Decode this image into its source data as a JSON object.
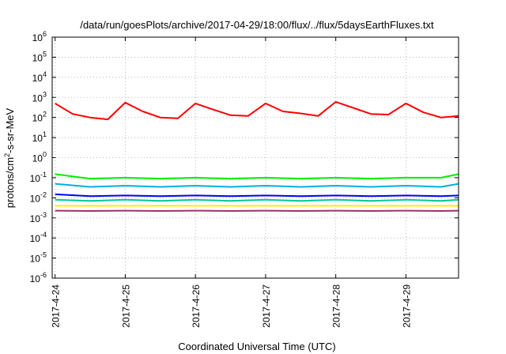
{
  "chart_data": {
    "type": "line",
    "title": "/data/run/goesPlots/archive/2017-04-29/18:00/flux/../flux/5daysEarthFluxes.txt",
    "xlabel": "Coordinated Universal Time (UTC)",
    "ylabel": {
      "pre": "protons/cm",
      "sup": "2",
      "post": "-s-sr-MeV"
    },
    "yscale": "log",
    "ylim": [
      1e-06,
      1000000.0
    ],
    "y_ticks": [
      {
        "base": "10",
        "exp": "-6",
        "value": 1e-06
      },
      {
        "base": "10",
        "exp": "-5",
        "value": 1e-05
      },
      {
        "base": "10",
        "exp": "-4",
        "value": 0.0001
      },
      {
        "base": "10",
        "exp": "-3",
        "value": 0.001
      },
      {
        "base": "10",
        "exp": "-2",
        "value": 0.01
      },
      {
        "base": "10",
        "exp": "-1",
        "value": 0.1
      },
      {
        "base": "10",
        "exp": "0",
        "value": 1
      },
      {
        "base": "10",
        "exp": "1",
        "value": 10
      },
      {
        "base": "10",
        "exp": "2",
        "value": 100
      },
      {
        "base": "10",
        "exp": "3",
        "value": 1000
      },
      {
        "base": "10",
        "exp": "4",
        "value": 10000
      },
      {
        "base": "10",
        "exp": "5",
        "value": 100000
      },
      {
        "base": "10",
        "exp": "6",
        "value": 1000000
      }
    ],
    "x_ticks": [
      "2017-4-24",
      "2017-4-25",
      "2017-4-26",
      "2017-4-27",
      "2017-4-28",
      "2017-4-29"
    ],
    "xlim": [
      "2017-04-23 23:00",
      "2017-04-29 18:00"
    ],
    "grid": true,
    "series": [
      {
        "color": "#ff0000",
        "x": [
          "2017-04-24 00:00",
          "2017-04-24 06:00",
          "2017-04-24 12:00",
          "2017-04-24 18:00",
          "2017-04-25 00:00",
          "2017-04-25 06:00",
          "2017-04-25 12:00",
          "2017-04-25 18:00",
          "2017-04-26 00:00",
          "2017-04-26 06:00",
          "2017-04-26 12:00",
          "2017-04-26 18:00",
          "2017-04-27 00:00",
          "2017-04-27 06:00",
          "2017-04-27 12:00",
          "2017-04-27 18:00",
          "2017-04-28 00:00",
          "2017-04-28 06:00",
          "2017-04-28 12:00",
          "2017-04-28 18:00",
          "2017-04-29 00:00",
          "2017-04-29 06:00",
          "2017-04-29 12:00",
          "2017-04-29 18:00"
        ],
        "values": [
          500,
          150,
          100,
          80,
          550,
          200,
          100,
          90,
          500,
          250,
          130,
          120,
          500,
          200,
          160,
          120,
          600,
          300,
          150,
          140,
          500,
          180,
          100,
          120
        ]
      },
      {
        "color": "#00ee00",
        "x": [
          "2017-04-24 00:00",
          "2017-04-24 12:00",
          "2017-04-25 00:00",
          "2017-04-25 12:00",
          "2017-04-26 00:00",
          "2017-04-26 12:00",
          "2017-04-27 00:00",
          "2017-04-27 12:00",
          "2017-04-28 00:00",
          "2017-04-28 12:00",
          "2017-04-29 00:00",
          "2017-04-29 12:00",
          "2017-04-29 18:00"
        ],
        "values": [
          0.15,
          0.09,
          0.1,
          0.09,
          0.1,
          0.09,
          0.1,
          0.09,
          0.1,
          0.09,
          0.1,
          0.1,
          0.15
        ]
      },
      {
        "color": "#00b0e0",
        "x": [
          "2017-04-24 00:00",
          "2017-04-24 12:00",
          "2017-04-25 00:00",
          "2017-04-25 12:00",
          "2017-04-26 00:00",
          "2017-04-26 12:00",
          "2017-04-27 00:00",
          "2017-04-27 12:00",
          "2017-04-28 00:00",
          "2017-04-28 12:00",
          "2017-04-29 00:00",
          "2017-04-29 12:00",
          "2017-04-29 18:00"
        ],
        "values": [
          0.05,
          0.035,
          0.04,
          0.035,
          0.04,
          0.035,
          0.04,
          0.035,
          0.04,
          0.035,
          0.04,
          0.035,
          0.05
        ]
      },
      {
        "color": "#0000ff",
        "x": [
          "2017-04-24 00:00",
          "2017-04-24 12:00",
          "2017-04-25 00:00",
          "2017-04-25 12:00",
          "2017-04-26 00:00",
          "2017-04-26 12:00",
          "2017-04-27 00:00",
          "2017-04-27 12:00",
          "2017-04-28 00:00",
          "2017-04-28 12:00",
          "2017-04-29 00:00",
          "2017-04-29 12:00",
          "2017-04-29 18:00"
        ],
        "values": [
          0.015,
          0.012,
          0.013,
          0.012,
          0.013,
          0.012,
          0.013,
          0.012,
          0.013,
          0.012,
          0.013,
          0.012,
          0.013
        ]
      },
      {
        "color": "#00c8a0",
        "x": [
          "2017-04-24 00:00",
          "2017-04-24 12:00",
          "2017-04-25 00:00",
          "2017-04-25 12:00",
          "2017-04-26 00:00",
          "2017-04-26 12:00",
          "2017-04-27 00:00",
          "2017-04-27 12:00",
          "2017-04-28 00:00",
          "2017-04-28 12:00",
          "2017-04-29 00:00",
          "2017-04-29 12:00",
          "2017-04-29 18:00"
        ],
        "values": [
          0.008,
          0.007,
          0.008,
          0.007,
          0.008,
          0.007,
          0.008,
          0.007,
          0.008,
          0.007,
          0.008,
          0.007,
          0.008
        ]
      },
      {
        "color": "#ffee00",
        "x": [
          "2017-04-24 00:00",
          "2017-04-29 18:00"
        ],
        "values": [
          0.004,
          0.004
        ]
      },
      {
        "color": "#993377",
        "x": [
          "2017-04-24 00:00",
          "2017-04-24 12:00",
          "2017-04-25 00:00",
          "2017-04-25 12:00",
          "2017-04-26 00:00",
          "2017-04-26 12:00",
          "2017-04-27 00:00",
          "2017-04-27 12:00",
          "2017-04-28 00:00",
          "2017-04-28 12:00",
          "2017-04-29 00:00",
          "2017-04-29 12:00",
          "2017-04-29 18:00"
        ],
        "values": [
          0.0023,
          0.0022,
          0.0023,
          0.0022,
          0.0023,
          0.0022,
          0.0023,
          0.0022,
          0.0023,
          0.0022,
          0.0023,
          0.0022,
          0.0023
        ]
      }
    ]
  }
}
